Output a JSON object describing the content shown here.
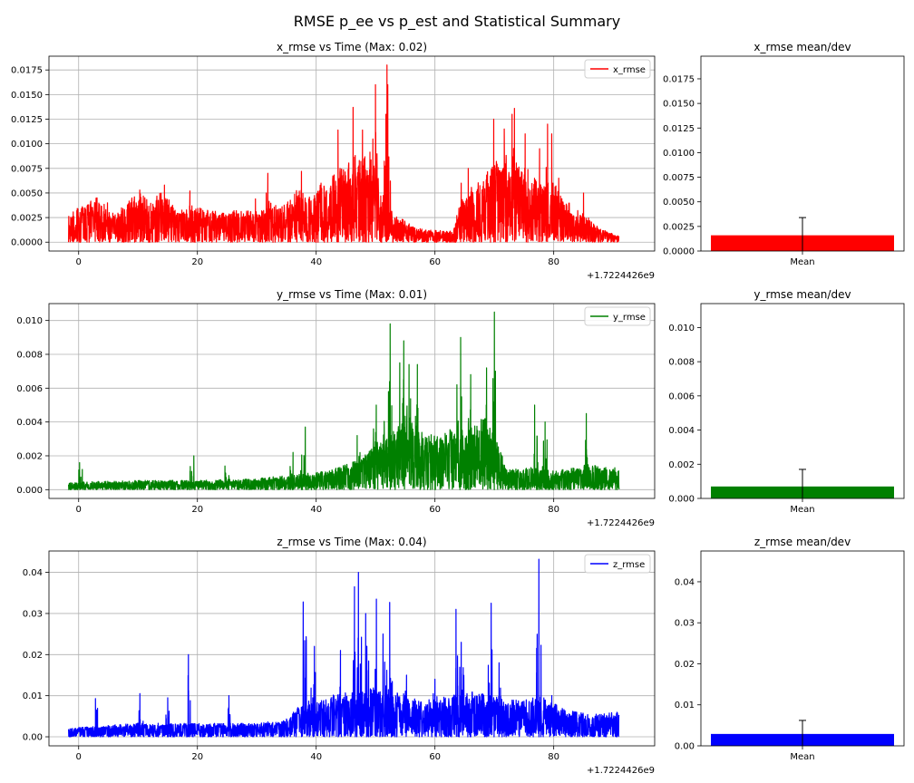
{
  "title": "RMSE p_ee vs p_est and Statistical Summary",
  "chart_data": [
    {
      "type": "line",
      "title": "x_rmse vs Time (Max: 0.02)",
      "x_offset_label": "+1.7224426e9",
      "xlim": [
        -5,
        97
      ],
      "ylim": [
        -0.0009,
        0.0189
      ],
      "x_ticks": [
        0,
        20,
        40,
        60,
        80
      ],
      "y_ticks": [
        0.0,
        0.0025,
        0.005,
        0.0075,
        0.01,
        0.0125,
        0.015,
        0.0175
      ],
      "y_tick_labels": [
        "0.0000",
        "0.0025",
        "0.0050",
        "0.0075",
        "0.0100",
        "0.0125",
        "0.0150",
        "0.0175"
      ],
      "grid": true,
      "legend": "upper right",
      "color": "#ff0000",
      "series": [
        {
          "name": "x_rmse",
          "x_range": [
            -1.7,
            91.0
          ],
          "envelope": [
            [
              -1.7,
              0.0026
            ],
            [
              0,
              0.0032
            ],
            [
              3,
              0.0042
            ],
            [
              6,
              0.0027
            ],
            [
              8,
              0.0038
            ],
            [
              10,
              0.0047
            ],
            [
              12,
              0.0038
            ],
            [
              14,
              0.0048
            ],
            [
              16,
              0.0034
            ],
            [
              18,
              0.003
            ],
            [
              20,
              0.0032
            ],
            [
              24,
              0.0028
            ],
            [
              27,
              0.003
            ],
            [
              30,
              0.0029
            ],
            [
              33,
              0.0034
            ],
            [
              35,
              0.0036
            ],
            [
              37,
              0.005
            ],
            [
              39,
              0.0042
            ],
            [
              41,
              0.0058
            ],
            [
              43,
              0.0062
            ],
            [
              45,
              0.0075
            ],
            [
              47,
              0.0072
            ],
            [
              49,
              0.0085
            ],
            [
              50,
              0.0065
            ],
            [
              51,
              0.006
            ],
            [
              52,
              0.004
            ],
            [
              53,
              0.0025
            ],
            [
              55,
              0.002
            ],
            [
              57,
              0.0013
            ],
            [
              60,
              0.0011
            ],
            [
              63,
              0.001
            ],
            [
              64,
              0.0032
            ],
            [
              66,
              0.005
            ],
            [
              68,
              0.0058
            ],
            [
              70,
              0.0075
            ],
            [
              72,
              0.0082
            ],
            [
              74,
              0.0075
            ],
            [
              76,
              0.006
            ],
            [
              78,
              0.0058
            ],
            [
              80,
              0.0055
            ],
            [
              82,
              0.004
            ],
            [
              84,
              0.003
            ],
            [
              86,
              0.0022
            ],
            [
              88,
              0.0012
            ],
            [
              90,
              0.0008
            ],
            [
              91,
              0.0006
            ]
          ],
          "spikes": [
            [
              3.0,
              0.0045
            ],
            [
              5.0,
              0.004
            ],
            [
              10.2,
              0.0053
            ],
            [
              14.8,
              0.0058
            ],
            [
              18.9,
              0.0052
            ],
            [
              30.0,
              0.0044
            ],
            [
              31.5,
              0.005
            ],
            [
              32.0,
              0.007
            ],
            [
              37.5,
              0.0072
            ],
            [
              43.8,
              0.0114
            ],
            [
              46.5,
              0.0137
            ],
            [
              47.6,
              0.0114
            ],
            [
              49.9,
              0.016
            ],
            [
              51.8,
              0.018
            ],
            [
              52.1,
              0.016
            ],
            [
              64.5,
              0.006
            ],
            [
              66.0,
              0.0075
            ],
            [
              70.0,
              0.0125
            ],
            [
              71.5,
              0.0115
            ],
            [
              73.0,
              0.013
            ],
            [
              73.5,
              0.0136
            ],
            [
              75.5,
              0.011
            ],
            [
              77.5,
              0.0095
            ],
            [
              78.8,
              0.012
            ],
            [
              80.0,
              0.011
            ],
            [
              81.0,
              0.0065
            ],
            [
              85.0,
              0.005
            ]
          ]
        }
      ]
    },
    {
      "type": "bar",
      "title": "x_rmse mean/dev",
      "categories": [
        "Mean"
      ],
      "values": [
        0.0016
      ],
      "error": [
        0.0018
      ],
      "ylim": [
        0,
        0.0198
      ],
      "y_ticks": [
        0.0,
        0.0025,
        0.005,
        0.0075,
        0.01,
        0.0125,
        0.015,
        0.0175
      ],
      "y_tick_labels": [
        "0.0000",
        "0.0025",
        "0.0050",
        "0.0075",
        "0.0100",
        "0.0125",
        "0.0150",
        "0.0175"
      ],
      "color": "#ff0000"
    },
    {
      "type": "line",
      "title": "y_rmse vs Time (Max: 0.01)",
      "x_offset_label": "+1.7224426e9",
      "xlim": [
        -5,
        97
      ],
      "ylim": [
        -0.00052,
        0.011
      ],
      "x_ticks": [
        0,
        20,
        40,
        60,
        80
      ],
      "y_ticks": [
        0.0,
        0.002,
        0.004,
        0.006,
        0.008,
        0.01
      ],
      "y_tick_labels": [
        "0.000",
        "0.002",
        "0.004",
        "0.006",
        "0.008",
        "0.010"
      ],
      "grid": true,
      "legend": "upper right",
      "color": "#008000",
      "series": [
        {
          "name": "y_rmse",
          "x_range": [
            -1.7,
            91.0
          ],
          "envelope": [
            [
              -1.7,
              0.0004
            ],
            [
              10,
              0.0005
            ],
            [
              20,
              0.0005
            ],
            [
              30,
              0.0006
            ],
            [
              36,
              0.0008
            ],
            [
              42,
              0.001
            ],
            [
              47,
              0.0016
            ],
            [
              50,
              0.0025
            ],
            [
              53,
              0.0035
            ],
            [
              56,
              0.0038
            ],
            [
              58,
              0.003
            ],
            [
              60,
              0.003
            ],
            [
              63,
              0.0033
            ],
            [
              66,
              0.0035
            ],
            [
              69,
              0.004
            ],
            [
              70,
              0.003
            ],
            [
              72,
              0.0012
            ],
            [
              76,
              0.0012
            ],
            [
              80,
              0.001
            ],
            [
              84,
              0.0012
            ],
            [
              86,
              0.0014
            ],
            [
              88,
              0.0012
            ],
            [
              91,
              0.0012
            ]
          ],
          "spikes": [
            [
              0.3,
              0.0016
            ],
            [
              19.0,
              0.002
            ],
            [
              25.0,
              0.0014
            ],
            [
              35.8,
              0.0022
            ],
            [
              37.8,
              0.0037
            ],
            [
              47.3,
              0.0032
            ],
            [
              49.8,
              0.005
            ],
            [
              51.8,
              0.0058
            ],
            [
              52.6,
              0.0098
            ],
            [
              54.2,
              0.0075
            ],
            [
              55.0,
              0.0088
            ],
            [
              56.0,
              0.0074
            ],
            [
              57.0,
              0.0074
            ],
            [
              63.5,
              0.0062
            ],
            [
              64.2,
              0.009
            ],
            [
              66.0,
              0.0068
            ],
            [
              68.5,
              0.0072
            ],
            [
              70.0,
              0.0105
            ],
            [
              77.0,
              0.005
            ],
            [
              78.5,
              0.004
            ],
            [
              85.5,
              0.0045
            ]
          ]
        }
      ]
    },
    {
      "type": "bar",
      "title": "y_rmse mean/dev",
      "categories": [
        "Mean"
      ],
      "values": [
        0.0007
      ],
      "error": [
        0.001
      ],
      "ylim": [
        0,
        0.0114
      ],
      "y_ticks": [
        0.0,
        0.002,
        0.004,
        0.006,
        0.008,
        0.01
      ],
      "y_tick_labels": [
        "0.000",
        "0.002",
        "0.004",
        "0.006",
        "0.008",
        "0.010"
      ],
      "color": "#008000"
    },
    {
      "type": "line",
      "title": "z_rmse vs Time (Max: 0.04)",
      "x_offset_label": "+1.7224426e9",
      "xlim": [
        -5,
        97
      ],
      "ylim": [
        -0.0022,
        0.0452
      ],
      "x_ticks": [
        0,
        20,
        40,
        60,
        80
      ],
      "y_ticks": [
        0.0,
        0.01,
        0.02,
        0.03,
        0.04
      ],
      "y_tick_labels": [
        "0.00",
        "0.01",
        "0.02",
        "0.03",
        "0.04"
      ],
      "grid": true,
      "legend": "upper right",
      "color": "#0000ff",
      "series": [
        {
          "name": "z_rmse",
          "x_range": [
            -1.7,
            91.0
          ],
          "envelope": [
            [
              -1.7,
              0.002
            ],
            [
              10,
              0.003
            ],
            [
              20,
              0.003
            ],
            [
              30,
              0.003
            ],
            [
              35,
              0.004
            ],
            [
              38,
              0.008
            ],
            [
              42,
              0.009
            ],
            [
              46,
              0.01
            ],
            [
              50,
              0.011
            ],
            [
              54,
              0.01
            ],
            [
              58,
              0.008
            ],
            [
              62,
              0.009
            ],
            [
              66,
              0.01
            ],
            [
              70,
              0.0095
            ],
            [
              74,
              0.008
            ],
            [
              78,
              0.009
            ],
            [
              82,
              0.006
            ],
            [
              86,
              0.005
            ],
            [
              91,
              0.0055
            ]
          ],
          "spikes": [
            [
              3.0,
              0.0093
            ],
            [
              10.5,
              0.0105
            ],
            [
              15.0,
              0.0095
            ],
            [
              18.8,
              0.02
            ],
            [
              25.3,
              0.01
            ],
            [
              38.0,
              0.0328
            ],
            [
              39.5,
              0.022
            ],
            [
              44.0,
              0.021
            ],
            [
              46.5,
              0.0365
            ],
            [
              47.3,
              0.04
            ],
            [
              48.5,
              0.03
            ],
            [
              50.2,
              0.0335
            ],
            [
              51.5,
              0.025
            ],
            [
              52.5,
              0.0327
            ],
            [
              55.0,
              0.015
            ],
            [
              60.0,
              0.014
            ],
            [
              63.8,
              0.031
            ],
            [
              64.5,
              0.023
            ],
            [
              69.3,
              0.0325
            ],
            [
              71.0,
              0.018
            ],
            [
              77.5,
              0.0432
            ],
            [
              80.0,
              0.01
            ]
          ]
        }
      ]
    },
    {
      "type": "bar",
      "title": "z_rmse mean/dev",
      "categories": [
        "Mean"
      ],
      "values": [
        0.0029
      ],
      "error": [
        0.0033
      ],
      "ylim": [
        0,
        0.0475
      ],
      "y_ticks": [
        0.0,
        0.01,
        0.02,
        0.03,
        0.04
      ],
      "y_tick_labels": [
        "0.00",
        "0.01",
        "0.02",
        "0.03",
        "0.04"
      ],
      "color": "#0000ff"
    }
  ]
}
